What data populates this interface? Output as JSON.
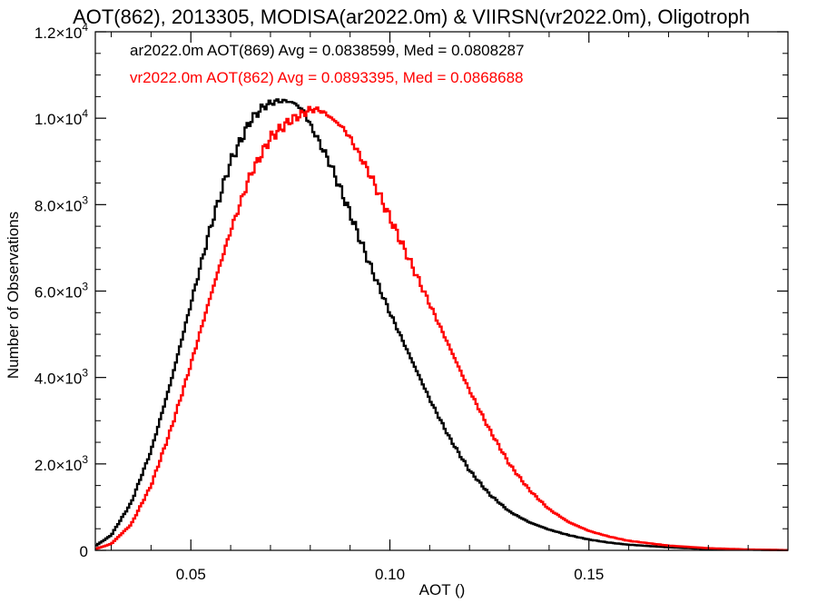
{
  "chart_data": {
    "type": "line",
    "title": "AOT(862), 2013305, MODISA(ar2022.0m) & VIIRSN(vr2022.0m), Oligotroph",
    "xlabel": "AOT ()",
    "ylabel": "Number of Observations",
    "xlim": [
      0.026,
      0.2
    ],
    "ylim": [
      0,
      12000
    ],
    "x_ticks": [
      0.05,
      0.1,
      0.15
    ],
    "x_tick_labels": [
      "0.05",
      "0.10",
      "0.15"
    ],
    "y_ticks": [
      0,
      2000,
      4000,
      6000,
      8000,
      10000,
      12000
    ],
    "y_tick_labels": [
      {
        "mant": "0",
        "exp": ""
      },
      {
        "mant": "2.0×10",
        "exp": "3"
      },
      {
        "mant": "4.0×10",
        "exp": "3"
      },
      {
        "mant": "6.0×10",
        "exp": "3"
      },
      {
        "mant": "8.0×10",
        "exp": "3"
      },
      {
        "mant": "1.0×10",
        "exp": "4"
      },
      {
        "mant": "1.2×10",
        "exp": "4"
      }
    ],
    "legend_position": "top-left",
    "grid": false,
    "series": [
      {
        "name": "ar2022.0m AOT(869) Avg = 0.0838599, Med = 0.0808287",
        "color": "#000000",
        "x": [
          0.026,
          0.03,
          0.035,
          0.04,
          0.045,
          0.05,
          0.055,
          0.06,
          0.065,
          0.068,
          0.07,
          0.072,
          0.074,
          0.076,
          0.078,
          0.08,
          0.085,
          0.09,
          0.095,
          0.1,
          0.105,
          0.11,
          0.115,
          0.12,
          0.125,
          0.13,
          0.135,
          0.14,
          0.145,
          0.15,
          0.155,
          0.16,
          0.17,
          0.18,
          0.19,
          0.2
        ],
        "y": [
          100,
          350,
          1100,
          2300,
          3900,
          5700,
          7500,
          9000,
          9950,
          10250,
          10350,
          10400,
          10400,
          10350,
          10200,
          9850,
          8950,
          7800,
          6600,
          5500,
          4500,
          3500,
          2600,
          1850,
          1300,
          900,
          650,
          480,
          350,
          250,
          180,
          130,
          70,
          30,
          15,
          5
        ]
      },
      {
        "name": "vr2022.0m AOT(862) Avg = 0.0893395, Med = 0.0868688",
        "color": "#ff0000",
        "x": [
          0.026,
          0.03,
          0.035,
          0.04,
          0.045,
          0.05,
          0.055,
          0.06,
          0.065,
          0.07,
          0.075,
          0.078,
          0.08,
          0.082,
          0.084,
          0.086,
          0.088,
          0.09,
          0.095,
          0.1,
          0.105,
          0.11,
          0.115,
          0.12,
          0.125,
          0.13,
          0.135,
          0.14,
          0.145,
          0.15,
          0.155,
          0.16,
          0.17,
          0.18,
          0.19,
          0.2
        ],
        "y": [
          30,
          150,
          600,
          1500,
          2800,
          4300,
          5900,
          7400,
          8700,
          9550,
          9950,
          10100,
          10200,
          10200,
          10100,
          9950,
          9800,
          9550,
          8700,
          7700,
          6700,
          5700,
          4700,
          3700,
          2800,
          2000,
          1400,
          950,
          650,
          450,
          320,
          220,
          110,
          50,
          20,
          5
        ]
      }
    ]
  }
}
